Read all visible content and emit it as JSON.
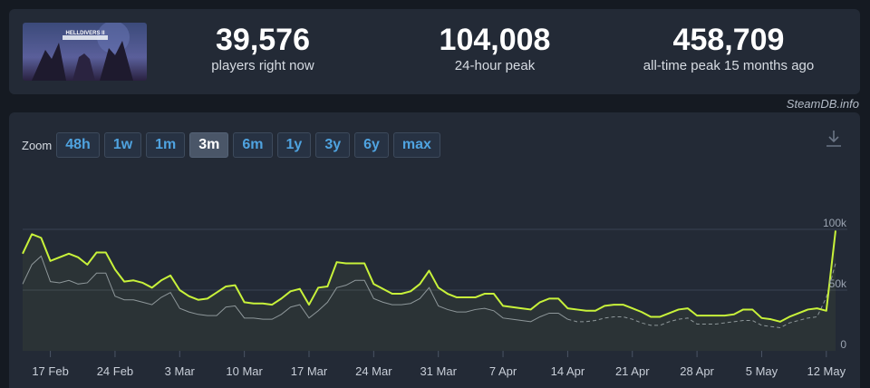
{
  "game": {
    "thumbnail_text": "HELLDIVERS II"
  },
  "stats": [
    {
      "value": "39,576",
      "label": "players right now"
    },
    {
      "value": "104,008",
      "label": "24-hour peak"
    },
    {
      "value": "458,709",
      "label": "all-time peak 15 months ago"
    }
  ],
  "credit": "SteamDB.info",
  "zoom": {
    "label": "Zoom",
    "options": [
      "48h",
      "1w",
      "1m",
      "3m",
      "6m",
      "1y",
      "3y",
      "6y",
      "max"
    ],
    "active": "3m"
  },
  "colors": {
    "players_line": "#c8f23a",
    "average_line": "#8c93a0",
    "grid": "#3a4352",
    "zoom_active": "#4a5668",
    "link_blue": "#4fa3e0"
  },
  "chart_data": {
    "type": "line",
    "title": "",
    "xlabel": "",
    "ylabel": "",
    "x_ticks": [
      "17 Feb",
      "24 Feb",
      "3 Mar",
      "10 Mar",
      "17 Mar",
      "24 Mar",
      "31 Mar",
      "7 Apr",
      "14 Apr",
      "21 Apr",
      "28 Apr",
      "5 May",
      "12 May"
    ],
    "y_ticks": [
      "0",
      "50k",
      "100k"
    ],
    "ylim": [
      0,
      100000
    ],
    "x_start": "2025-02-14",
    "x_end": "2025-05-13",
    "grid": true,
    "legend": "none",
    "series": [
      {
        "values": [
          80000,
          96000,
          93000,
          74000,
          77000,
          80000,
          77000,
          71000,
          81000,
          81000,
          67000,
          57000,
          58000,
          56000,
          52000,
          58000,
          62000,
          50000,
          45000,
          42000,
          43000,
          48000,
          53000,
          54000,
          40000,
          39000,
          39000,
          38000,
          43000,
          49000,
          51000,
          38000,
          52000,
          53000,
          73000,
          72000,
          72000,
          72000,
          55000,
          51000,
          47000,
          47000,
          49000,
          55000,
          66000,
          52000,
          47000,
          44000,
          44000,
          44000,
          47000,
          47000,
          37000,
          36000,
          35000,
          34000,
          40000,
          43000,
          43000,
          35000,
          34000,
          33000,
          33000,
          37000,
          38000,
          38000,
          35000,
          32000,
          28000,
          28000,
          31000,
          34000,
          35000,
          29000,
          29000,
          29000,
          29000,
          30000,
          34000,
          34000,
          27000,
          26000,
          24000,
          28000,
          31000,
          34000,
          35000,
          33000,
          99000
        ]
      },
      {
        "values": [
          55000,
          71000,
          78000,
          57000,
          56000,
          58000,
          55000,
          56000,
          64000,
          64000,
          45000,
          42000,
          42000,
          40000,
          38000,
          44000,
          48000,
          35000,
          32000,
          30000,
          29000,
          29000,
          36000,
          37000,
          27000,
          27000,
          26000,
          26000,
          30000,
          36000,
          38000,
          27000,
          33000,
          40000,
          52000,
          54000,
          58000,
          58000,
          43000,
          40000,
          38000,
          38000,
          39000,
          43000,
          52000,
          37000,
          34000,
          32000,
          32000,
          34000,
          35000,
          33000,
          27000,
          26000,
          25000,
          24000,
          28000,
          31000,
          31000,
          26000,
          24000,
          24000,
          25000,
          27000,
          28000,
          28000,
          26000,
          23000,
          21000,
          21000,
          24000,
          26000,
          27000,
          22000,
          22000,
          22000,
          23000,
          24000,
          25000,
          25000,
          21000,
          20000,
          19000,
          23000,
          25000,
          27000,
          28000,
          44000,
          72000
        ]
      }
    ]
  }
}
